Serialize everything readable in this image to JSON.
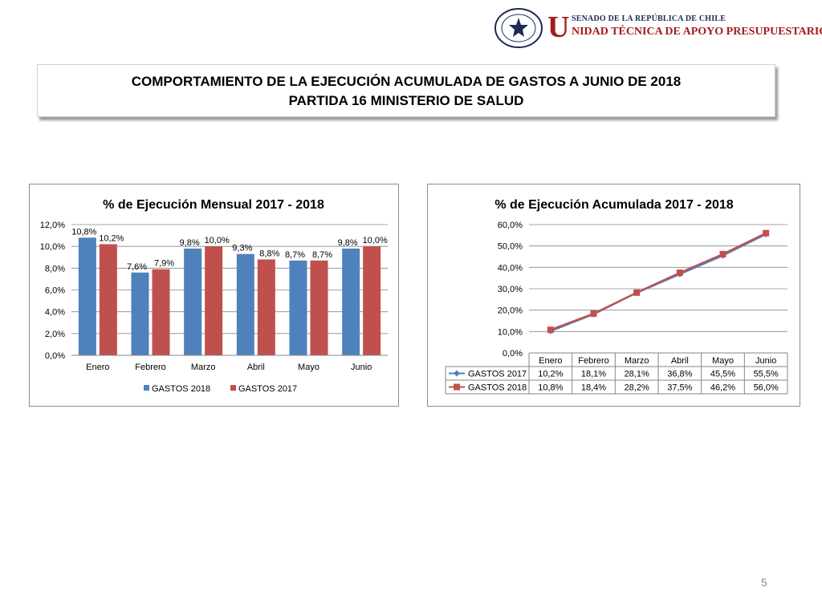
{
  "header": {
    "logo_letter": "U",
    "logo_line1": "SENADO DE LA REPÚBLICA DE CHILE",
    "logo_line2": "NIDAD TÉCNICA DE APOYO PRESUPUESTARIO",
    "seal_text_top": "REPÚBLICA DE CHILE",
    "seal_text_bottom": "SENADO"
  },
  "title": {
    "line1": "COMPORTAMIENTO DE LA EJECUCIÓN ACUMULADA DE GASTOS A JUNIO DE 2018",
    "line2": "PARTIDA 16 MINISTERIO DE SALUD"
  },
  "page_number": "5",
  "colors": {
    "gastos2018_bar": "#4f81bd",
    "gastos2017_bar": "#c0504d",
    "gastos2017_line": "#4f81bd",
    "gastos2018_line": "#c0504d"
  },
  "chart_data": [
    {
      "type": "bar",
      "title": "% de Ejecución Mensual 2017 - 2018",
      "categories": [
        "Enero",
        "Febrero",
        "Marzo",
        "Abril",
        "Mayo",
        "Junio"
      ],
      "series": [
        {
          "name": "GASTOS 2018",
          "values": [
            10.8,
            7.6,
            9.8,
            9.3,
            8.7,
            9.8
          ],
          "labels": [
            "10,8%",
            "7,6%",
            "9,8%",
            "9,3%",
            "8,7%",
            "9,8%"
          ]
        },
        {
          "name": "GASTOS 2017",
          "values": [
            10.2,
            7.9,
            10.0,
            8.8,
            8.7,
            10.0
          ],
          "labels": [
            "10,2%",
            "7,9%",
            "10,0%",
            "8,8%",
            "8,7%",
            "10,0%"
          ]
        }
      ],
      "ylim": [
        0,
        12
      ],
      "yticks": [
        "0,0%",
        "2,0%",
        "4,0%",
        "6,0%",
        "8,0%",
        "10,0%",
        "12,0%"
      ],
      "grid": true,
      "legend": "bottom"
    },
    {
      "type": "line",
      "title": "% de Ejecución Acumulada 2017 - 2018",
      "categories": [
        "Enero",
        "Febrero",
        "Marzo",
        "Abril",
        "Mayo",
        "Junio"
      ],
      "series": [
        {
          "name": "GASTOS 2017",
          "values": [
            10.2,
            18.1,
            28.1,
            36.8,
            45.5,
            55.5
          ],
          "labels": [
            "10,2%",
            "18,1%",
            "28,1%",
            "36,8%",
            "45,5%",
            "55,5%"
          ],
          "marker": "diamond"
        },
        {
          "name": "GASTOS 2018",
          "values": [
            10.8,
            18.4,
            28.2,
            37.5,
            46.2,
            56.0
          ],
          "labels": [
            "10,8%",
            "18,4%",
            "28,2%",
            "37,5%",
            "46,2%",
            "56,0%"
          ],
          "marker": "square"
        }
      ],
      "ylim": [
        0,
        60
      ],
      "yticks": [
        "0,0%",
        "10,0%",
        "20,0%",
        "30,0%",
        "40,0%",
        "50,0%",
        "60,0%"
      ],
      "grid": true,
      "legend": "data table below"
    }
  ]
}
